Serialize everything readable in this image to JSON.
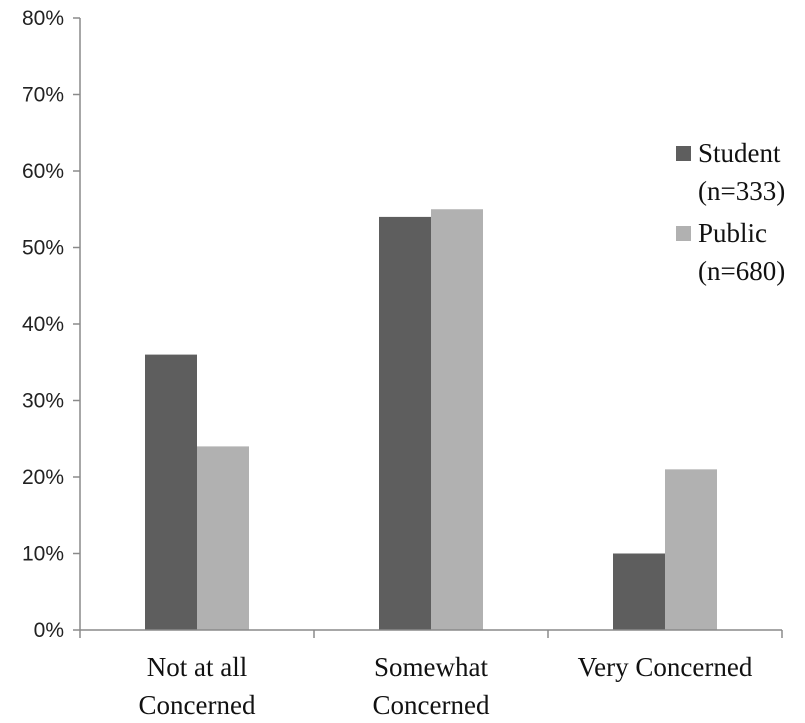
{
  "chart_data": {
    "type": "bar",
    "categories": [
      [
        "Not at all",
        "Concerned"
      ],
      [
        "Somewhat",
        "Concerned"
      ],
      [
        "Very Concerned"
      ]
    ],
    "series": [
      {
        "name": [
          "Student",
          "(n=333)"
        ],
        "values": [
          36,
          54,
          10
        ],
        "color": "#5e5e5e"
      },
      {
        "name": [
          "Public",
          "(n=680)"
        ],
        "values": [
          24,
          55,
          21
        ],
        "color": "#b1b1b1"
      }
    ],
    "yticks": [
      "0%",
      "10%",
      "20%",
      "30%",
      "40%",
      "50%",
      "60%",
      "70%",
      "80%"
    ],
    "ylim": [
      0,
      80
    ],
    "ytick_step": 10,
    "legend_position": "right",
    "grid": false,
    "title": "",
    "xlabel": "",
    "ylabel": ""
  }
}
